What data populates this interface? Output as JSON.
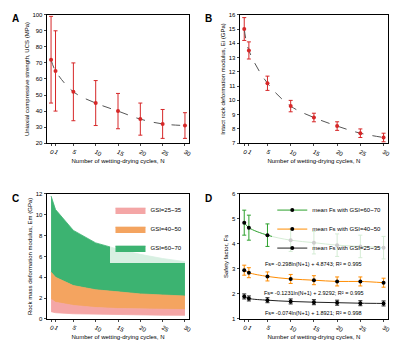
{
  "chart_data": [
    {
      "type": "scatter",
      "title": "A",
      "x_label": "Number of wetting-drying cycles, N",
      "y_label": "Uniaxial compressive strength, UCS (MPa)",
      "x": [
        0,
        1,
        5,
        10,
        15,
        20,
        25,
        30
      ],
      "values": [
        72,
        65,
        52,
        45,
        40,
        35,
        32,
        31
      ],
      "error": [
        27,
        25,
        18,
        14,
        11,
        10,
        9,
        8
      ],
      "color": "#d62728",
      "line_style": "dashed",
      "marker": "circle",
      "xlim": [
        -1,
        31
      ],
      "xticks": [
        0,
        1,
        5,
        10,
        15,
        20,
        25,
        30
      ],
      "ylim": [
        20,
        100
      ],
      "yticks": [
        20,
        30,
        40,
        50,
        60,
        70,
        80,
        90,
        100
      ],
      "grid": false
    },
    {
      "type": "scatter",
      "title": "B",
      "x_label": "Number of wetting-drying cycles, N",
      "y_label": "Intact rock deformation modulus, Ei (GPa)",
      "x": [
        0,
        1,
        5,
        10,
        15,
        20,
        25,
        30
      ],
      "values": [
        15.0,
        13.5,
        11.2,
        9.6,
        8.8,
        8.2,
        7.7,
        7.4
      ],
      "error": [
        0.8,
        0.6,
        0.5,
        0.4,
        0.3,
        0.3,
        0.3,
        0.3
      ],
      "color": "#d62728",
      "line_style": "dashed",
      "marker": "circle",
      "xlim": [
        -1,
        31
      ],
      "xticks": [
        0,
        1,
        5,
        10,
        15,
        20,
        25,
        30
      ],
      "ylim": [
        7,
        16
      ],
      "yticks": [
        7,
        8,
        9,
        10,
        11,
        12,
        13,
        14,
        15,
        16
      ],
      "grid": false
    },
    {
      "type": "band",
      "title": "C",
      "x_label": "Number of wetting-drying cycles, N",
      "y_label": "Rock mass deformation modulus, Em (GPa)",
      "x": [
        0,
        1,
        5,
        10,
        15,
        20,
        25,
        30
      ],
      "series": [
        {
          "name": "GSI=60~70",
          "color": "#3cb371",
          "upper": [
            11.8,
            10.5,
            8.5,
            7.3,
            6.7,
            6.2,
            5.8,
            5.5
          ],
          "lower": [
            4.5,
            4.0,
            3.2,
            2.8,
            2.6,
            2.4,
            2.3,
            2.2
          ]
        },
        {
          "name": "GSI=40~50",
          "color": "#f4a460",
          "upper": [
            4.5,
            4.0,
            3.2,
            2.8,
            2.6,
            2.4,
            2.3,
            2.2
          ],
          "lower": [
            1.9,
            1.6,
            1.3,
            1.1,
            1.0,
            0.95,
            0.9,
            0.9
          ]
        },
        {
          "name": "GSI=25~35",
          "color": "#f4a6a6",
          "upper": [
            1.9,
            1.6,
            1.3,
            1.1,
            1.0,
            0.95,
            0.9,
            0.9
          ],
          "lower": [
            0.7,
            0.6,
            0.5,
            0.45,
            0.4,
            0.38,
            0.36,
            0.35
          ]
        }
      ],
      "legend": "upper right",
      "xlim": [
        -1,
        31
      ],
      "xticks": [
        0,
        1,
        5,
        10,
        15,
        20,
        25,
        30
      ],
      "ylim": [
        0,
        12
      ],
      "yticks": [
        0,
        2,
        4,
        6,
        8,
        10,
        12
      ],
      "grid": false
    },
    {
      "type": "line",
      "title": "D",
      "x_label": "Number of wetting-drying cycles, N",
      "y_label": "Safety factor, Fs",
      "x": [
        0,
        1,
        5,
        10,
        15,
        20,
        25,
        30
      ],
      "series": [
        {
          "name": "mean Fs with GSI=60~70",
          "color": "#2ca02c",
          "values": [
            4.85,
            4.65,
            4.35,
            4.15,
            4.05,
            3.95,
            3.9,
            3.85
          ],
          "error": [
            0.5,
            0.5,
            0.45,
            0.45,
            0.45,
            0.45,
            0.45,
            0.45
          ]
        },
        {
          "name": "mean Fs with GSI=40~50",
          "color": "#ff8c00",
          "values": [
            2.95,
            2.85,
            2.7,
            2.6,
            2.55,
            2.5,
            2.5,
            2.45
          ],
          "error": [
            0.2,
            0.2,
            0.18,
            0.18,
            0.18,
            0.18,
            0.18,
            0.18
          ]
        },
        {
          "name": "mean Fs with GSI=25~35",
          "color": "#222222",
          "values": [
            1.9,
            1.82,
            1.75,
            1.7,
            1.67,
            1.65,
            1.63,
            1.62
          ],
          "error": [
            0.1,
            0.1,
            0.1,
            0.1,
            0.1,
            0.1,
            0.1,
            0.1
          ]
        }
      ],
      "annotations": [
        {
          "text": "Fs= -0.298ln(N+1) + 4.8743; R² = 0.995",
          "x": 15,
          "y": 3.2
        },
        {
          "text": "Fs= -0.1231ln(N+1) + 2.9292; R² = 0.995",
          "x": 15,
          "y": 2.05
        },
        {
          "text": "Fs= -0.074ln(N+1) + 1.8921; R² = 0.998",
          "x": 15,
          "y": 1.25
        }
      ],
      "legend": "upper right",
      "marker": "circle",
      "xlim": [
        -1,
        31
      ],
      "xticks": [
        0,
        1,
        5,
        10,
        15,
        20,
        25,
        30
      ],
      "ylim": [
        1,
        6
      ],
      "yticks": [
        1,
        2,
        3,
        4,
        5,
        6
      ],
      "grid": false
    }
  ]
}
